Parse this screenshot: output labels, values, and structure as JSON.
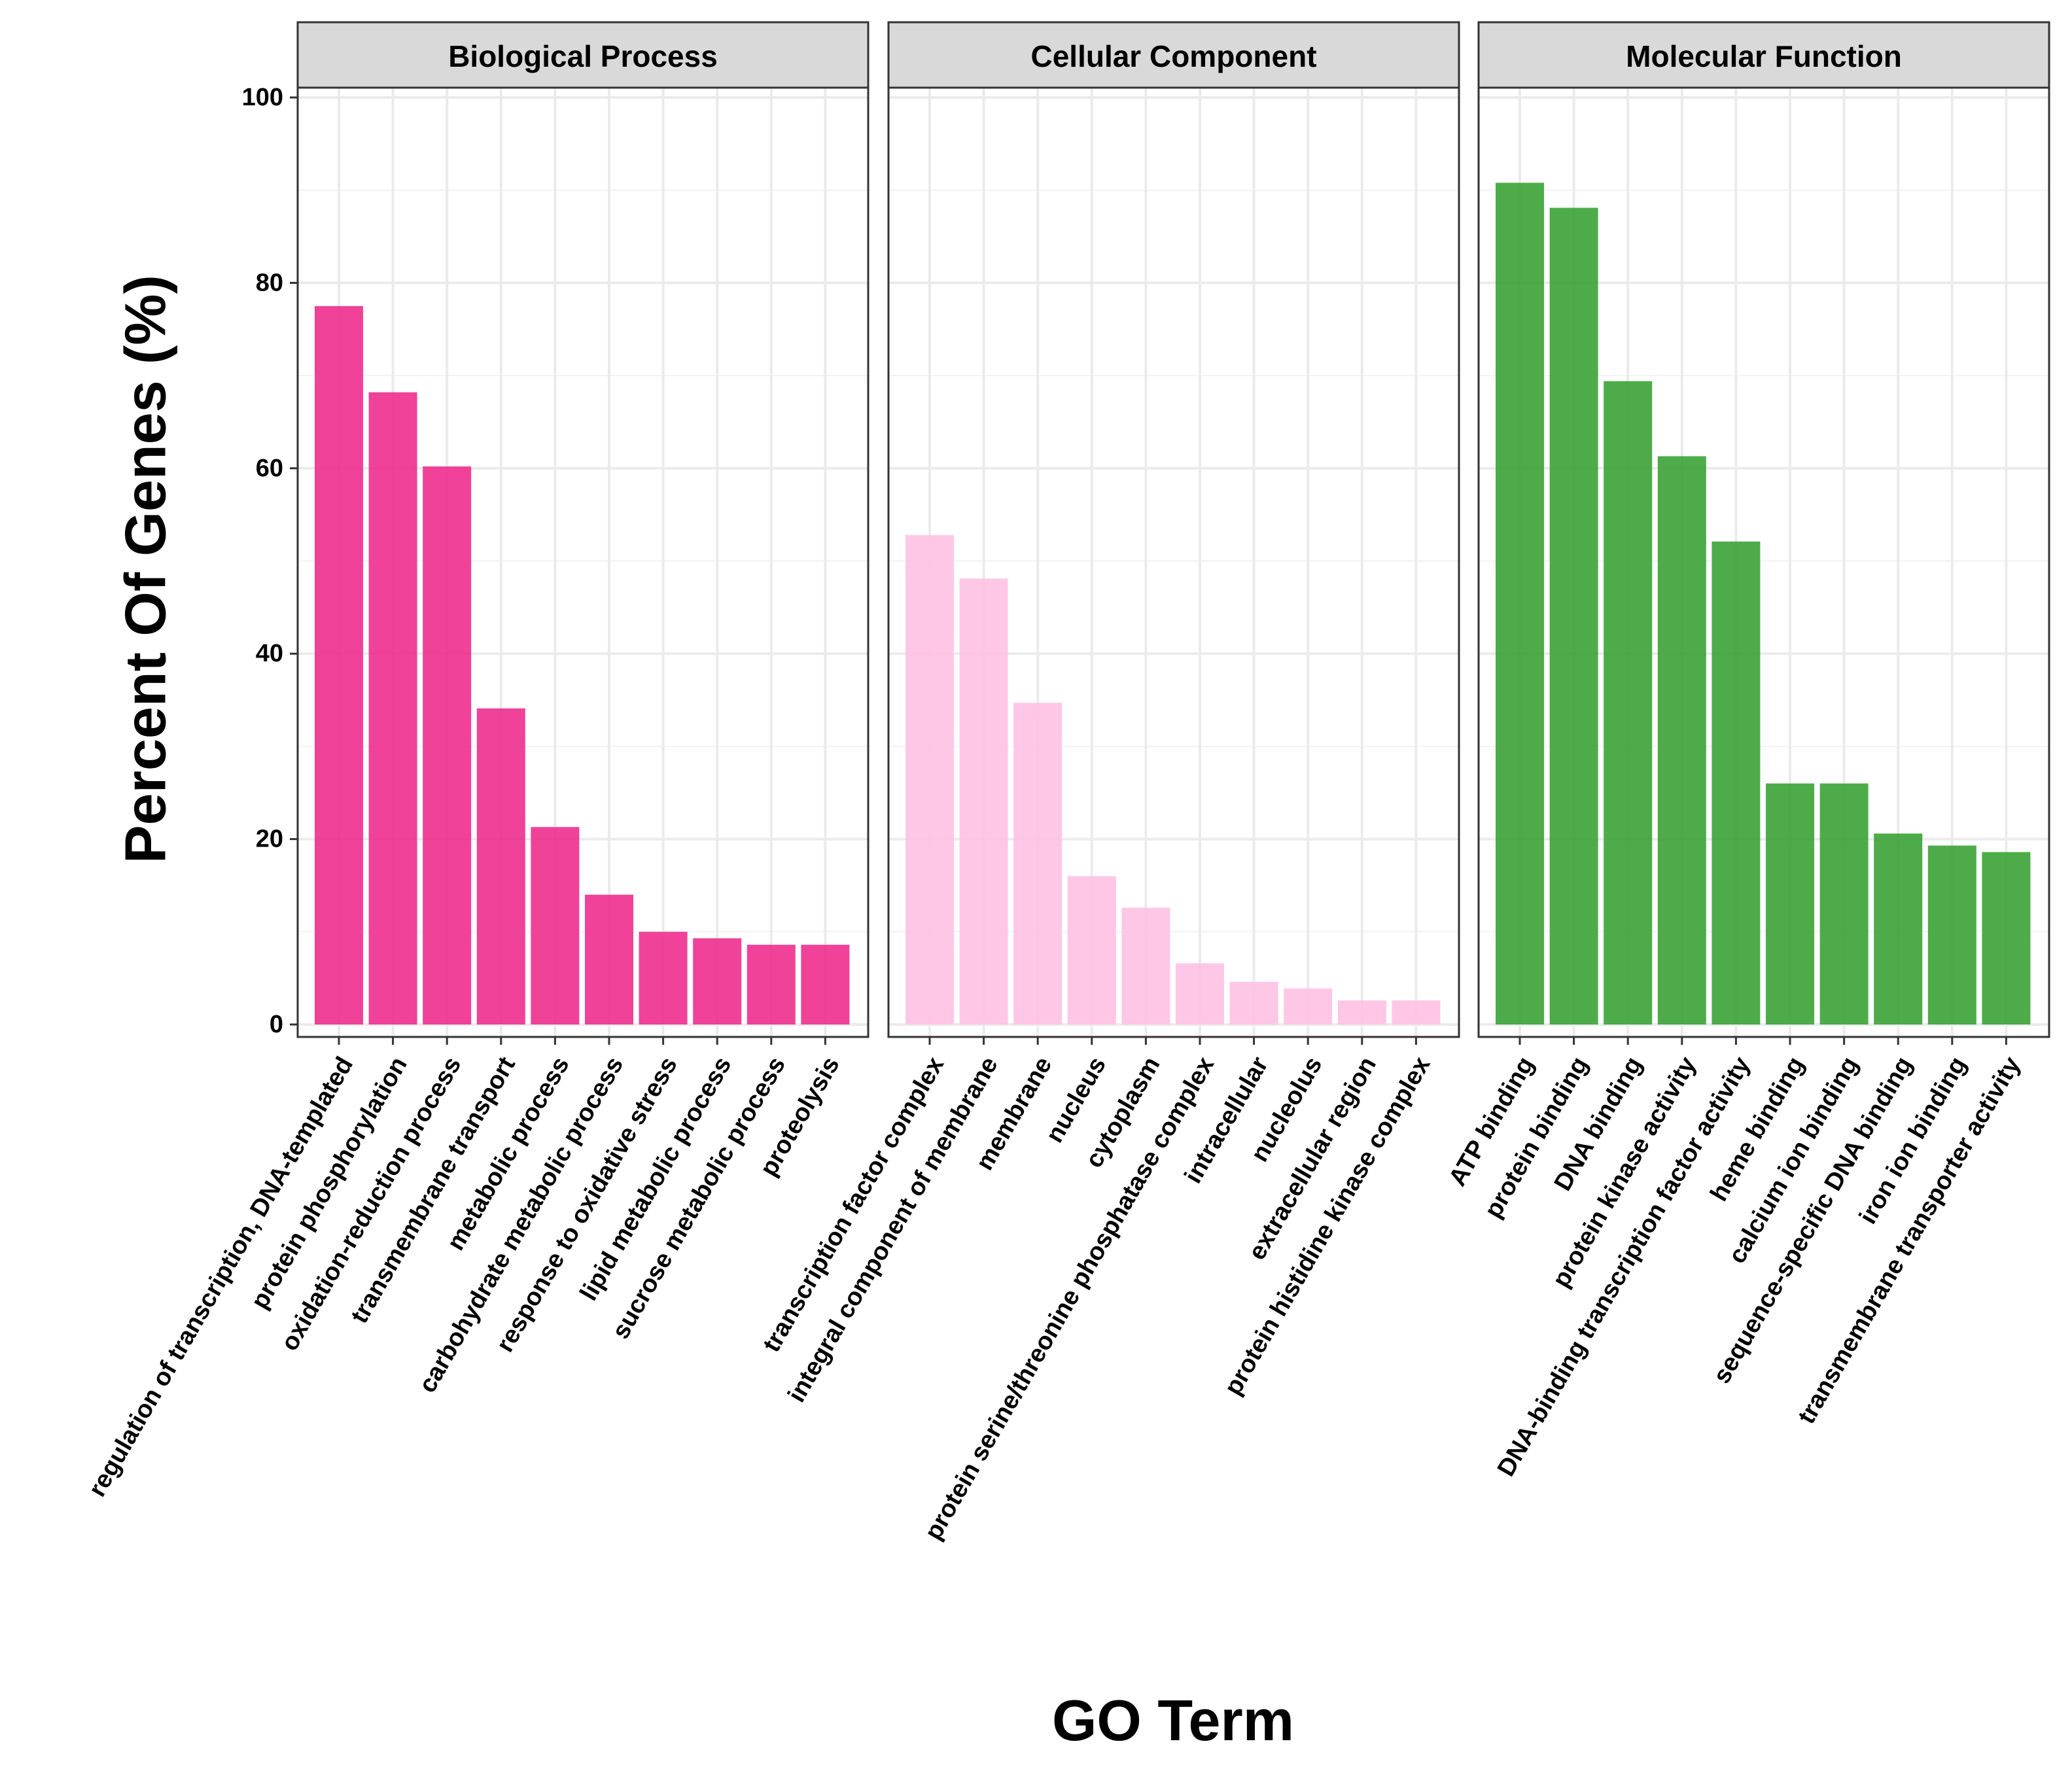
{
  "chart_data": {
    "type": "bar",
    "xlabel": "GO Term",
    "ylabel": "Percent Of Genes (%)",
    "ylim": [
      0,
      100
    ],
    "y_ticks": [
      0,
      20,
      40,
      60,
      80,
      100
    ],
    "grid": true,
    "legend": "none",
    "panels": [
      {
        "title": "Biological Process",
        "color": "#EE2E8E",
        "categories": [
          "regulation of transcription, DNA-templated",
          "protein phosphorylation",
          "oxidation-reduction process",
          "transmembrane transport",
          "metabolic process",
          "carbohydrate metabolic process",
          "response to oxidative stress",
          "lipid metabolic process",
          "sucrose metabolic process",
          "proteolysis"
        ],
        "values": [
          77.5,
          68.2,
          60.2,
          34.1,
          21.3,
          14.0,
          10.0,
          9.3,
          8.6,
          8.6
        ]
      },
      {
        "title": "Cellular Component",
        "color": "#FFC1E3",
        "categories": [
          "transcription factor complex",
          "integral component of membrane",
          "membrane",
          "nucleus",
          "cytoplasm",
          "protein serine/threonine phosphatase complex",
          "intracellular",
          "nucleolus",
          "extracellular region",
          "protein histidine kinase complex"
        ],
        "values": [
          52.8,
          48.1,
          34.7,
          16.0,
          12.6,
          6.6,
          4.6,
          3.9,
          2.6,
          2.6
        ]
      },
      {
        "title": "Molecular Function",
        "color": "#3AA335",
        "categories": [
          "ATP binding",
          "protein binding",
          "DNA binding",
          "protein kinase activity",
          "DNA-binding transcription factor activity",
          "heme binding",
          "calcium ion binding",
          "sequence-specific DNA binding",
          "iron ion binding",
          "transmembrane transporter activity"
        ],
        "values": [
          90.8,
          88.1,
          69.4,
          61.3,
          52.1,
          26.0,
          26.0,
          20.6,
          19.3,
          18.6
        ]
      }
    ]
  }
}
